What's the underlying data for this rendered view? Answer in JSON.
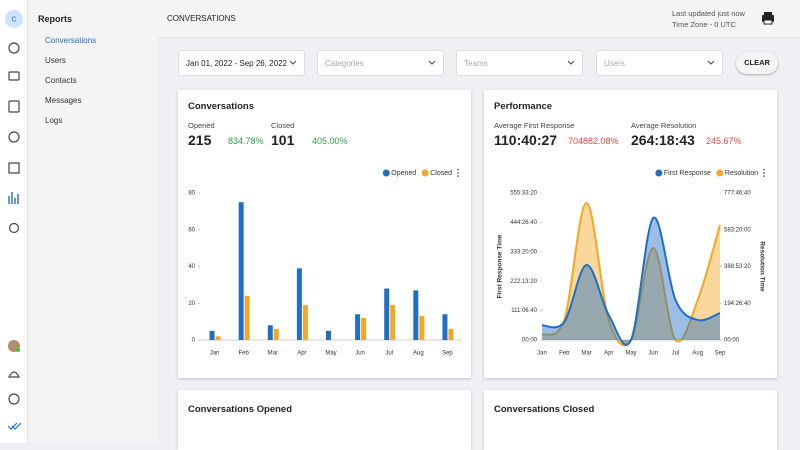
{
  "sidebar": {
    "avatar": "C",
    "section": "Reports",
    "items": [
      "Conversations",
      "Users",
      "Contacts",
      "Messages",
      "Logs"
    ]
  },
  "header": {
    "title": "CONVERSATIONS",
    "updated": "Last updated just now",
    "timezone": "Time Zone - 0 UTC"
  },
  "filters": {
    "date": "Jan 01, 2022 - Sep 26, 2022",
    "categories": "Categories",
    "teams": "Teams",
    "users": "Users",
    "clear": "CLEAR"
  },
  "cards": [
    {
      "title": "Conversations",
      "metrics": [
        {
          "label": "Opened",
          "value": "215",
          "change": "834.78%"
        },
        {
          "label": "Closed",
          "value": "101",
          "change": "405.00%"
        }
      ]
    },
    {
      "title": "Performance",
      "metrics": [
        {
          "label": "Average First Response",
          "value": "110:40:27",
          "change": "704882.08%"
        },
        {
          "label": "Average Resolution",
          "value": "264:18:43",
          "change": "245.67%"
        }
      ]
    },
    {
      "title": "Conversations Opened"
    },
    {
      "title": "Conversations Closed"
    }
  ],
  "chart_data": [
    {
      "type": "bar",
      "categories": [
        "Jan",
        "Feb",
        "Mar",
        "Apr",
        "May",
        "Jun",
        "Jul",
        "Aug",
        "Sep"
      ],
      "series": [
        {
          "name": "Opened",
          "color": "#1f6fc5",
          "values": [
            5,
            75,
            8,
            39,
            5,
            14,
            28,
            27,
            14
          ]
        },
        {
          "name": "Closed",
          "color": "#f5a623",
          "values": [
            2,
            24,
            6,
            19,
            0,
            12,
            19,
            13,
            6
          ]
        }
      ],
      "ylim": [
        0,
        80
      ],
      "yticks": [
        0,
        20,
        40,
        60,
        80
      ],
      "grid": false,
      "legend": "top-right"
    },
    {
      "type": "line",
      "categories": [
        "Jan",
        "Feb",
        "Mar",
        "Apr",
        "May",
        "Jun",
        "Jul",
        "Aug",
        "Sep"
      ],
      "series": [
        {
          "name": "First Response",
          "color": "#1f6fc5",
          "values": [
            200000,
            245000,
            1020000,
            340000,
            0,
            1660000,
            544000,
            272000,
            367000
          ]
        },
        {
          "name": "Resolution",
          "color": "#f5a623",
          "axis": "y2",
          "values": [
            100000,
            380000,
            2610000,
            380000,
            0,
            1750000,
            0,
            760000,
            2190000
          ]
        }
      ],
      "ylabel": "First Response Time",
      "y2label": "Resolution Time",
      "ylim": [
        0,
        2000000
      ],
      "yticks": [
        {
          "value": 0,
          "label": "00:00"
        },
        {
          "value": 400000,
          "label": "111:06:40"
        },
        {
          "value": 800000,
          "label": "222:13:20"
        },
        {
          "value": 1200000,
          "label": "333:20:00"
        },
        {
          "value": 1600000,
          "label": "444:26:40"
        },
        {
          "value": 2000000,
          "label": "555:33:20"
        }
      ],
      "y2lim": [
        0,
        2800000
      ],
      "y2ticks": [
        {
          "value": 0,
          "label": "00:00"
        },
        {
          "value": 700000,
          "label": "194:26:40"
        },
        {
          "value": 1400000,
          "label": "388:53:20"
        },
        {
          "value": 2100000,
          "label": "583:20:00"
        },
        {
          "value": 2800000,
          "label": "777:46:40"
        }
      ],
      "grid": false,
      "legend": "top-right"
    }
  ]
}
